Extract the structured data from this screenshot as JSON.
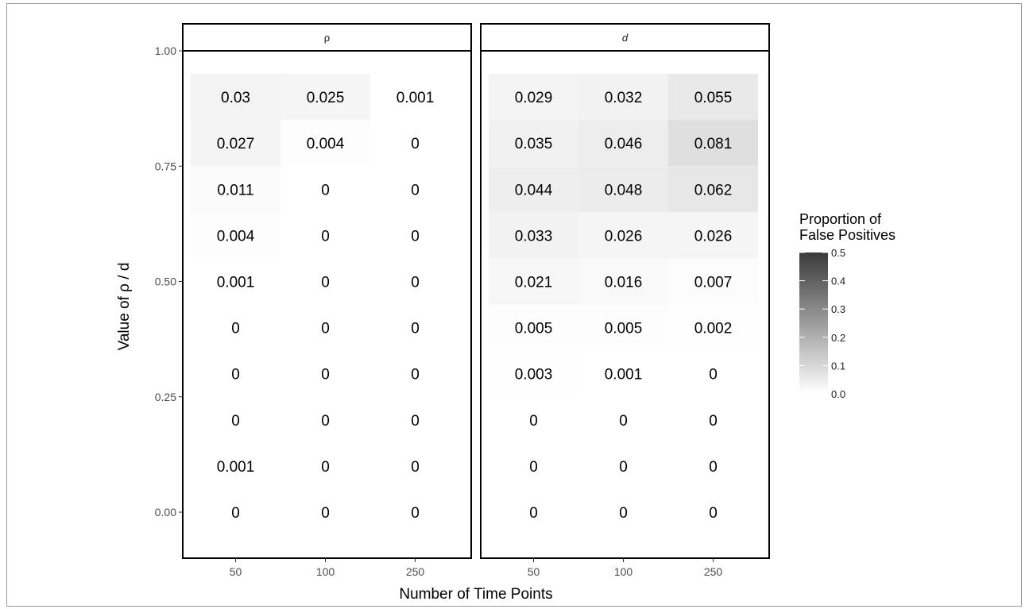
{
  "chart_data": {
    "type": "heatmap",
    "xlabel": "Number of Time Points",
    "ylabel": "Value of ρ / d",
    "x_categories": [
      "50",
      "100",
      "250"
    ],
    "y_ticks": [
      "0.00",
      "0.25",
      "0.50",
      "0.75",
      "1.00"
    ],
    "ylim": [
      -0.125,
      1.0
    ],
    "rows_top_to_bottom_note_y": [
      0.9,
      0.8,
      0.7,
      0.6,
      0.5,
      0.4,
      0.3,
      0.2,
      0.1,
      0.0
    ],
    "legend": {
      "title_lines": [
        "Proportion of",
        "False Positives"
      ],
      "ticks": [
        "0.0",
        "0.1",
        "0.2",
        "0.3",
        "0.4",
        "0.5"
      ],
      "range": [
        0,
        0.5
      ],
      "color_low": "#ffffff",
      "color_high": "#3a3a3a"
    },
    "panels": [
      {
        "strip": "ρ",
        "strip_italic": false,
        "values": [
          [
            "0.03",
            "0.025",
            "0.001"
          ],
          [
            "0.027",
            "0.004",
            "0"
          ],
          [
            "0.011",
            "0",
            "0"
          ],
          [
            "0.004",
            "0",
            "0"
          ],
          [
            "0.001",
            "0",
            "0"
          ],
          [
            "0",
            "0",
            "0"
          ],
          [
            "0",
            "0",
            "0"
          ],
          [
            "0",
            "0",
            "0"
          ],
          [
            "0.001",
            "0",
            "0"
          ],
          [
            "0",
            "0",
            "0"
          ]
        ]
      },
      {
        "strip": "d",
        "strip_italic": true,
        "values": [
          [
            "0.029",
            "0.032",
            "0.055"
          ],
          [
            "0.035",
            "0.046",
            "0.081"
          ],
          [
            "0.044",
            "0.048",
            "0.062"
          ],
          [
            "0.033",
            "0.026",
            "0.026"
          ],
          [
            "0.021",
            "0.016",
            "0.007"
          ],
          [
            "0.005",
            "0.005",
            "0.002"
          ],
          [
            "0.003",
            "0.001",
            "0"
          ],
          [
            "0",
            "0",
            "0"
          ],
          [
            "0",
            "0",
            "0"
          ],
          [
            "0",
            "0",
            "0"
          ]
        ]
      }
    ]
  }
}
